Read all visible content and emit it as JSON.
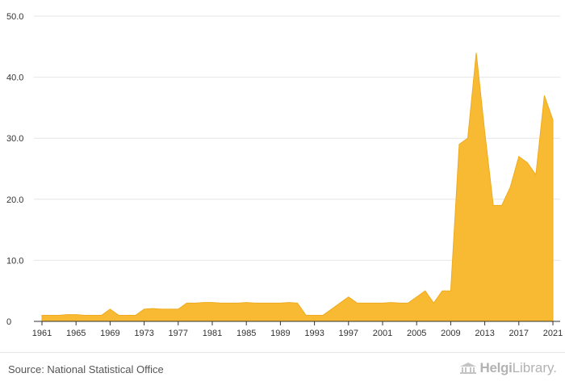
{
  "chart_data": {
    "type": "area",
    "color": "#F9BA33",
    "x": [
      1961,
      1962,
      1963,
      1964,
      1965,
      1966,
      1967,
      1968,
      1969,
      1970,
      1971,
      1972,
      1973,
      1974,
      1975,
      1976,
      1977,
      1978,
      1979,
      1980,
      1981,
      1982,
      1983,
      1984,
      1985,
      1986,
      1987,
      1988,
      1989,
      1990,
      1991,
      1992,
      1993,
      1994,
      1995,
      1996,
      1997,
      1998,
      1999,
      2000,
      2001,
      2002,
      2003,
      2004,
      2005,
      2006,
      2007,
      2008,
      2009,
      2010,
      2011,
      2012,
      2013,
      2014,
      2015,
      2016,
      2017,
      2018,
      2019,
      2020,
      2021
    ],
    "values": [
      1.0,
      1.0,
      1.0,
      1.1,
      1.1,
      1.0,
      1.0,
      1.0,
      2.0,
      1.0,
      1.0,
      1.0,
      2.0,
      2.1,
      2.0,
      2.0,
      2.0,
      3.0,
      3.0,
      3.1,
      3.1,
      3.0,
      3.0,
      3.0,
      3.1,
      3.0,
      3.0,
      3.0,
      3.0,
      3.1,
      3.0,
      1.0,
      1.0,
      1.0,
      2.0,
      3.0,
      4.0,
      3.0,
      3.0,
      3.0,
      3.0,
      3.1,
      3.0,
      3.0,
      4.0,
      5.0,
      3.0,
      5.0,
      5.0,
      29.0,
      30.0,
      44.0,
      31.0,
      19.0,
      19.0,
      22.0,
      27.0,
      26.0,
      24.0,
      37.0,
      33.0
    ],
    "ylim": [
      0,
      50
    ],
    "yticks": [
      "0",
      "10.0",
      "20.0",
      "30.0",
      "40.0",
      "50.0"
    ],
    "xticks": [
      "1961",
      "1965",
      "1969",
      "1973",
      "1977",
      "1981",
      "1985",
      "1989",
      "1993",
      "1997",
      "2001",
      "2005",
      "2009",
      "2013",
      "2017",
      "2021"
    ],
    "grid": true
  },
  "footer": {
    "source": "Source: National Statistical Office",
    "logo_brand": "Helgi",
    "logo_suffix": "Library."
  }
}
